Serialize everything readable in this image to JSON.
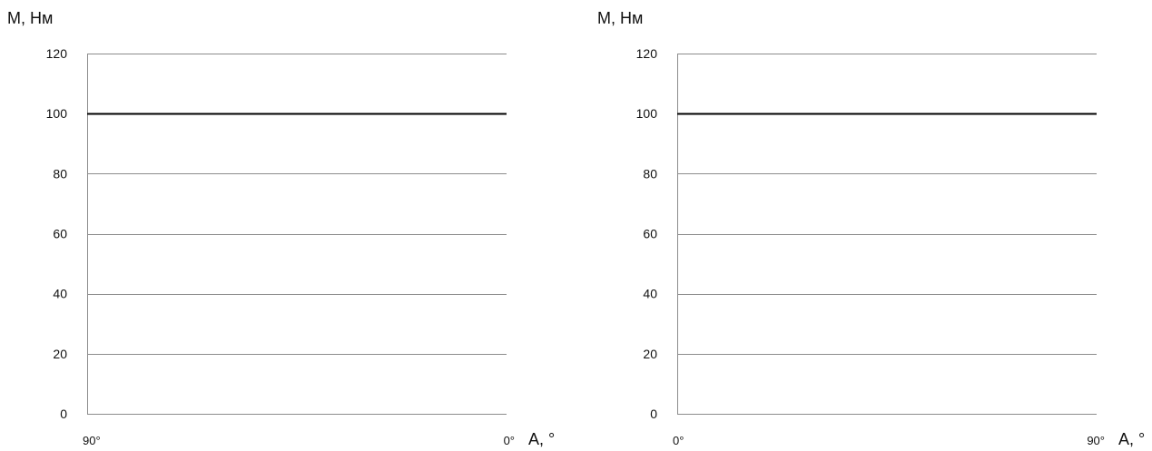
{
  "chart_data": [
    {
      "type": "line",
      "ylabel": "М, Нм",
      "xlabel": "А, °",
      "x_ticks": [
        "90°",
        "0°"
      ],
      "x_reversed": true,
      "xlim": [
        90,
        0
      ],
      "ylim": [
        0,
        120
      ],
      "y_ticks": [
        0,
        20,
        40,
        60,
        80,
        100,
        120
      ],
      "grid": true,
      "series": [
        {
          "x": [
            90,
            0
          ],
          "y": [
            100,
            100
          ],
          "color": "#000000"
        }
      ]
    },
    {
      "type": "line",
      "ylabel": "М, Нм",
      "xlabel": "А, °",
      "x_ticks": [
        "0°",
        "90°"
      ],
      "x_reversed": false,
      "xlim": [
        0,
        90
      ],
      "ylim": [
        0,
        120
      ],
      "y_ticks": [
        0,
        20,
        40,
        60,
        80,
        100,
        120
      ],
      "grid": true,
      "series": [
        {
          "x": [
            0,
            90
          ],
          "y": [
            100,
            100
          ],
          "color": "#000000"
        }
      ]
    }
  ]
}
